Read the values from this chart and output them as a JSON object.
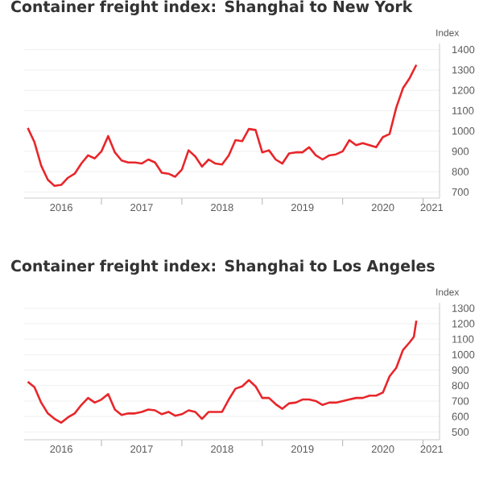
{
  "chart_data": [
    {
      "type": "line",
      "title": "Container freight index: Shanghai to New York",
      "ylabel": "Index",
      "color": "#e8262a",
      "x": [
        "2016-02",
        "2016-03",
        "2016-04",
        "2016-05",
        "2016-06",
        "2016-07",
        "2016-08",
        "2016-09",
        "2016-10",
        "2016-11",
        "2016-12",
        "2017-01",
        "2017-02",
        "2017-03",
        "2017-04",
        "2017-05",
        "2017-06",
        "2017-07",
        "2017-08",
        "2017-09",
        "2017-10",
        "2017-11",
        "2017-12",
        "2018-01",
        "2018-02",
        "2018-03",
        "2018-04",
        "2018-05",
        "2018-06",
        "2018-07",
        "2018-08",
        "2018-09",
        "2018-10",
        "2018-11",
        "2018-12",
        "2019-01",
        "2019-02",
        "2019-03",
        "2019-04",
        "2019-05",
        "2019-06",
        "2019-07",
        "2019-08",
        "2019-09",
        "2019-10",
        "2019-11",
        "2019-12",
        "2020-01",
        "2020-02",
        "2020-03",
        "2020-04",
        "2020-05",
        "2020-06",
        "2020-07",
        "2020-08",
        "2020-09",
        "2020-10",
        "2020-11",
        "2020-12"
      ],
      "values": [
        1015,
        945,
        830,
        760,
        730,
        735,
        770,
        790,
        840,
        880,
        865,
        900,
        975,
        895,
        855,
        845,
        845,
        840,
        860,
        845,
        795,
        790,
        775,
        810,
        905,
        875,
        825,
        860,
        840,
        835,
        880,
        955,
        950,
        1010,
        1005,
        895,
        905,
        860,
        840,
        890,
        895,
        895,
        920,
        880,
        860,
        880,
        885,
        900,
        955,
        930,
        940,
        930,
        920,
        970,
        985,
        1115,
        1210,
        1260,
        1325
      ],
      "xlim": [
        "2016-01-15",
        "2021-03-15"
      ],
      "xticks": [
        {
          "value": "2016-07-01",
          "label": "2016"
        },
        {
          "value": "2017-01-01",
          "label": null
        },
        {
          "value": "2017-07-01",
          "label": "2017"
        },
        {
          "value": "2018-01-01",
          "label": null
        },
        {
          "value": "2018-07-01",
          "label": "2018"
        },
        {
          "value": "2019-01-01",
          "label": null
        },
        {
          "value": "2019-07-01",
          "label": "2019"
        },
        {
          "value": "2020-01-01",
          "label": null
        },
        {
          "value": "2020-07-01",
          "label": "2020"
        },
        {
          "value": "2021-01-01",
          "label": null
        },
        {
          "value": "2021-02-10",
          "label": "2021"
        }
      ],
      "ylim": [
        670,
        1430
      ],
      "yticks": [
        700,
        800,
        900,
        1000,
        1100,
        1200,
        1300,
        1400
      ],
      "grid": "y",
      "line_style": "solid",
      "marker": "none"
    },
    {
      "type": "line",
      "title": "Container freight index: Shanghai to Los Angeles",
      "ylabel": "Index",
      "color": "#e8262a",
      "x": [
        "2016-02",
        "2016-03",
        "2016-04",
        "2016-05",
        "2016-06",
        "2016-07",
        "2016-08",
        "2016-09",
        "2016-10",
        "2016-11",
        "2016-12",
        "2017-01",
        "2017-02",
        "2017-03",
        "2017-04",
        "2017-05",
        "2017-06",
        "2017-07",
        "2017-08",
        "2017-09",
        "2017-10",
        "2017-11",
        "2017-12",
        "2018-01",
        "2018-02",
        "2018-03",
        "2018-04",
        "2018-05",
        "2018-06",
        "2018-07",
        "2018-08",
        "2018-09",
        "2018-10",
        "2018-11",
        "2018-12",
        "2019-01",
        "2019-02",
        "2019-03",
        "2019-04",
        "2019-05",
        "2019-06",
        "2019-07",
        "2019-08",
        "2019-09",
        "2019-10",
        "2019-11",
        "2019-12",
        "2020-01",
        "2020-02",
        "2020-03",
        "2020-04",
        "2020-05",
        "2020-06",
        "2020-07",
        "2020-08",
        "2020-09",
        "2020-10",
        "2020-11",
        "2020-11-20",
        "2020-12"
      ],
      "values": [
        825,
        790,
        690,
        620,
        585,
        560,
        595,
        620,
        675,
        720,
        690,
        710,
        745,
        645,
        610,
        620,
        620,
        630,
        645,
        640,
        615,
        630,
        605,
        615,
        640,
        630,
        585,
        630,
        630,
        630,
        710,
        780,
        795,
        835,
        795,
        720,
        720,
        680,
        650,
        685,
        690,
        710,
        710,
        700,
        675,
        690,
        690,
        700,
        710,
        720,
        720,
        735,
        735,
        755,
        860,
        915,
        1030,
        1080,
        1115,
        1220
      ],
      "xlim": [
        "2016-01-15",
        "2021-03-15"
      ],
      "xticks": [
        {
          "value": "2016-07-01",
          "label": "2016"
        },
        {
          "value": "2017-01-01",
          "label": null
        },
        {
          "value": "2017-07-01",
          "label": "2017"
        },
        {
          "value": "2018-01-01",
          "label": null
        },
        {
          "value": "2018-07-01",
          "label": "2018"
        },
        {
          "value": "2019-01-01",
          "label": null
        },
        {
          "value": "2019-07-01",
          "label": "2019"
        },
        {
          "value": "2020-01-01",
          "label": null
        },
        {
          "value": "2020-07-01",
          "label": "2020"
        },
        {
          "value": "2021-01-01",
          "label": null
        },
        {
          "value": "2021-02-10",
          "label": "2021"
        }
      ],
      "ylim": [
        450,
        1335
      ],
      "yticks": [
        500,
        600,
        700,
        800,
        900,
        1000,
        1100,
        1200,
        1300
      ],
      "grid": "y",
      "line_style": "solid",
      "marker": "none"
    }
  ]
}
